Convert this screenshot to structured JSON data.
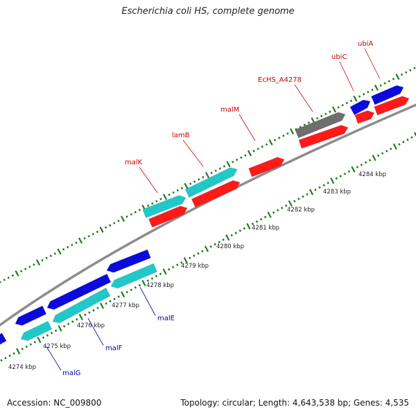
{
  "title": "Escherichia coli HS, complete genome",
  "footer": {
    "accession": "Accession: NC_009800",
    "summary": "Topology: circular; Length: 4,643,538 bp; Genes: 4,535"
  },
  "colors": {
    "backbone": "#8c8c8c",
    "tick": "#1f7a1f",
    "plus_label": "#cc0000",
    "minus_label": "#00009a",
    "red_feature": "#ff1a1a",
    "blue_feature": "#0a0adc",
    "cyan_feature": "#22c8c8",
    "gray_feature": "#6e6e6e"
  },
  "scale_labels": [
    "4274 kbp",
    "4275 kbp",
    "4276 kbp",
    "4277 kbp",
    "4278 kbp",
    "4279 kbp",
    "4280 kbp",
    "4281 kbp",
    "4282 kbp",
    "4283 kbp",
    "4284 kbp"
  ],
  "gene_labels_top": [
    "malK",
    "lamB",
    "malM",
    "EcHS_A4278",
    "ubiC",
    "ubiA"
  ],
  "gene_labels_bottom": [
    "malE",
    "malF",
    "malG"
  ]
}
